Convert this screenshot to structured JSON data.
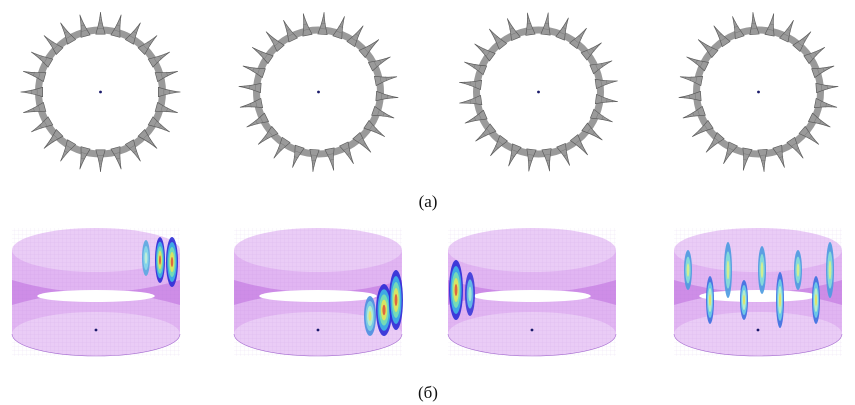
{
  "figure": {
    "caption_a": "(а)",
    "caption_b": "(б)"
  },
  "row_a": {
    "panels": [
      {
        "teeth": 24,
        "rotation_deg": 0
      },
      {
        "teeth": 24,
        "rotation_deg": 4
      },
      {
        "teeth": 24,
        "rotation_deg": 7
      },
      {
        "teeth": 24,
        "rotation_deg": 11
      }
    ],
    "colors": {
      "tooth": "#9a9a9a",
      "tooth_edge": "#555555",
      "center_dot": "#1a1a6a"
    }
  },
  "row_b": {
    "panels": [
      {
        "mode": "right-edge"
      },
      {
        "mode": "right-front"
      },
      {
        "mode": "left-edge"
      },
      {
        "mode": "distributed"
      }
    ],
    "colors": {
      "shell": "#d9a2ef",
      "shell_edge": "#a46bd0",
      "band": "#b255d6",
      "center_dot": "#1a1a6a"
    }
  }
}
